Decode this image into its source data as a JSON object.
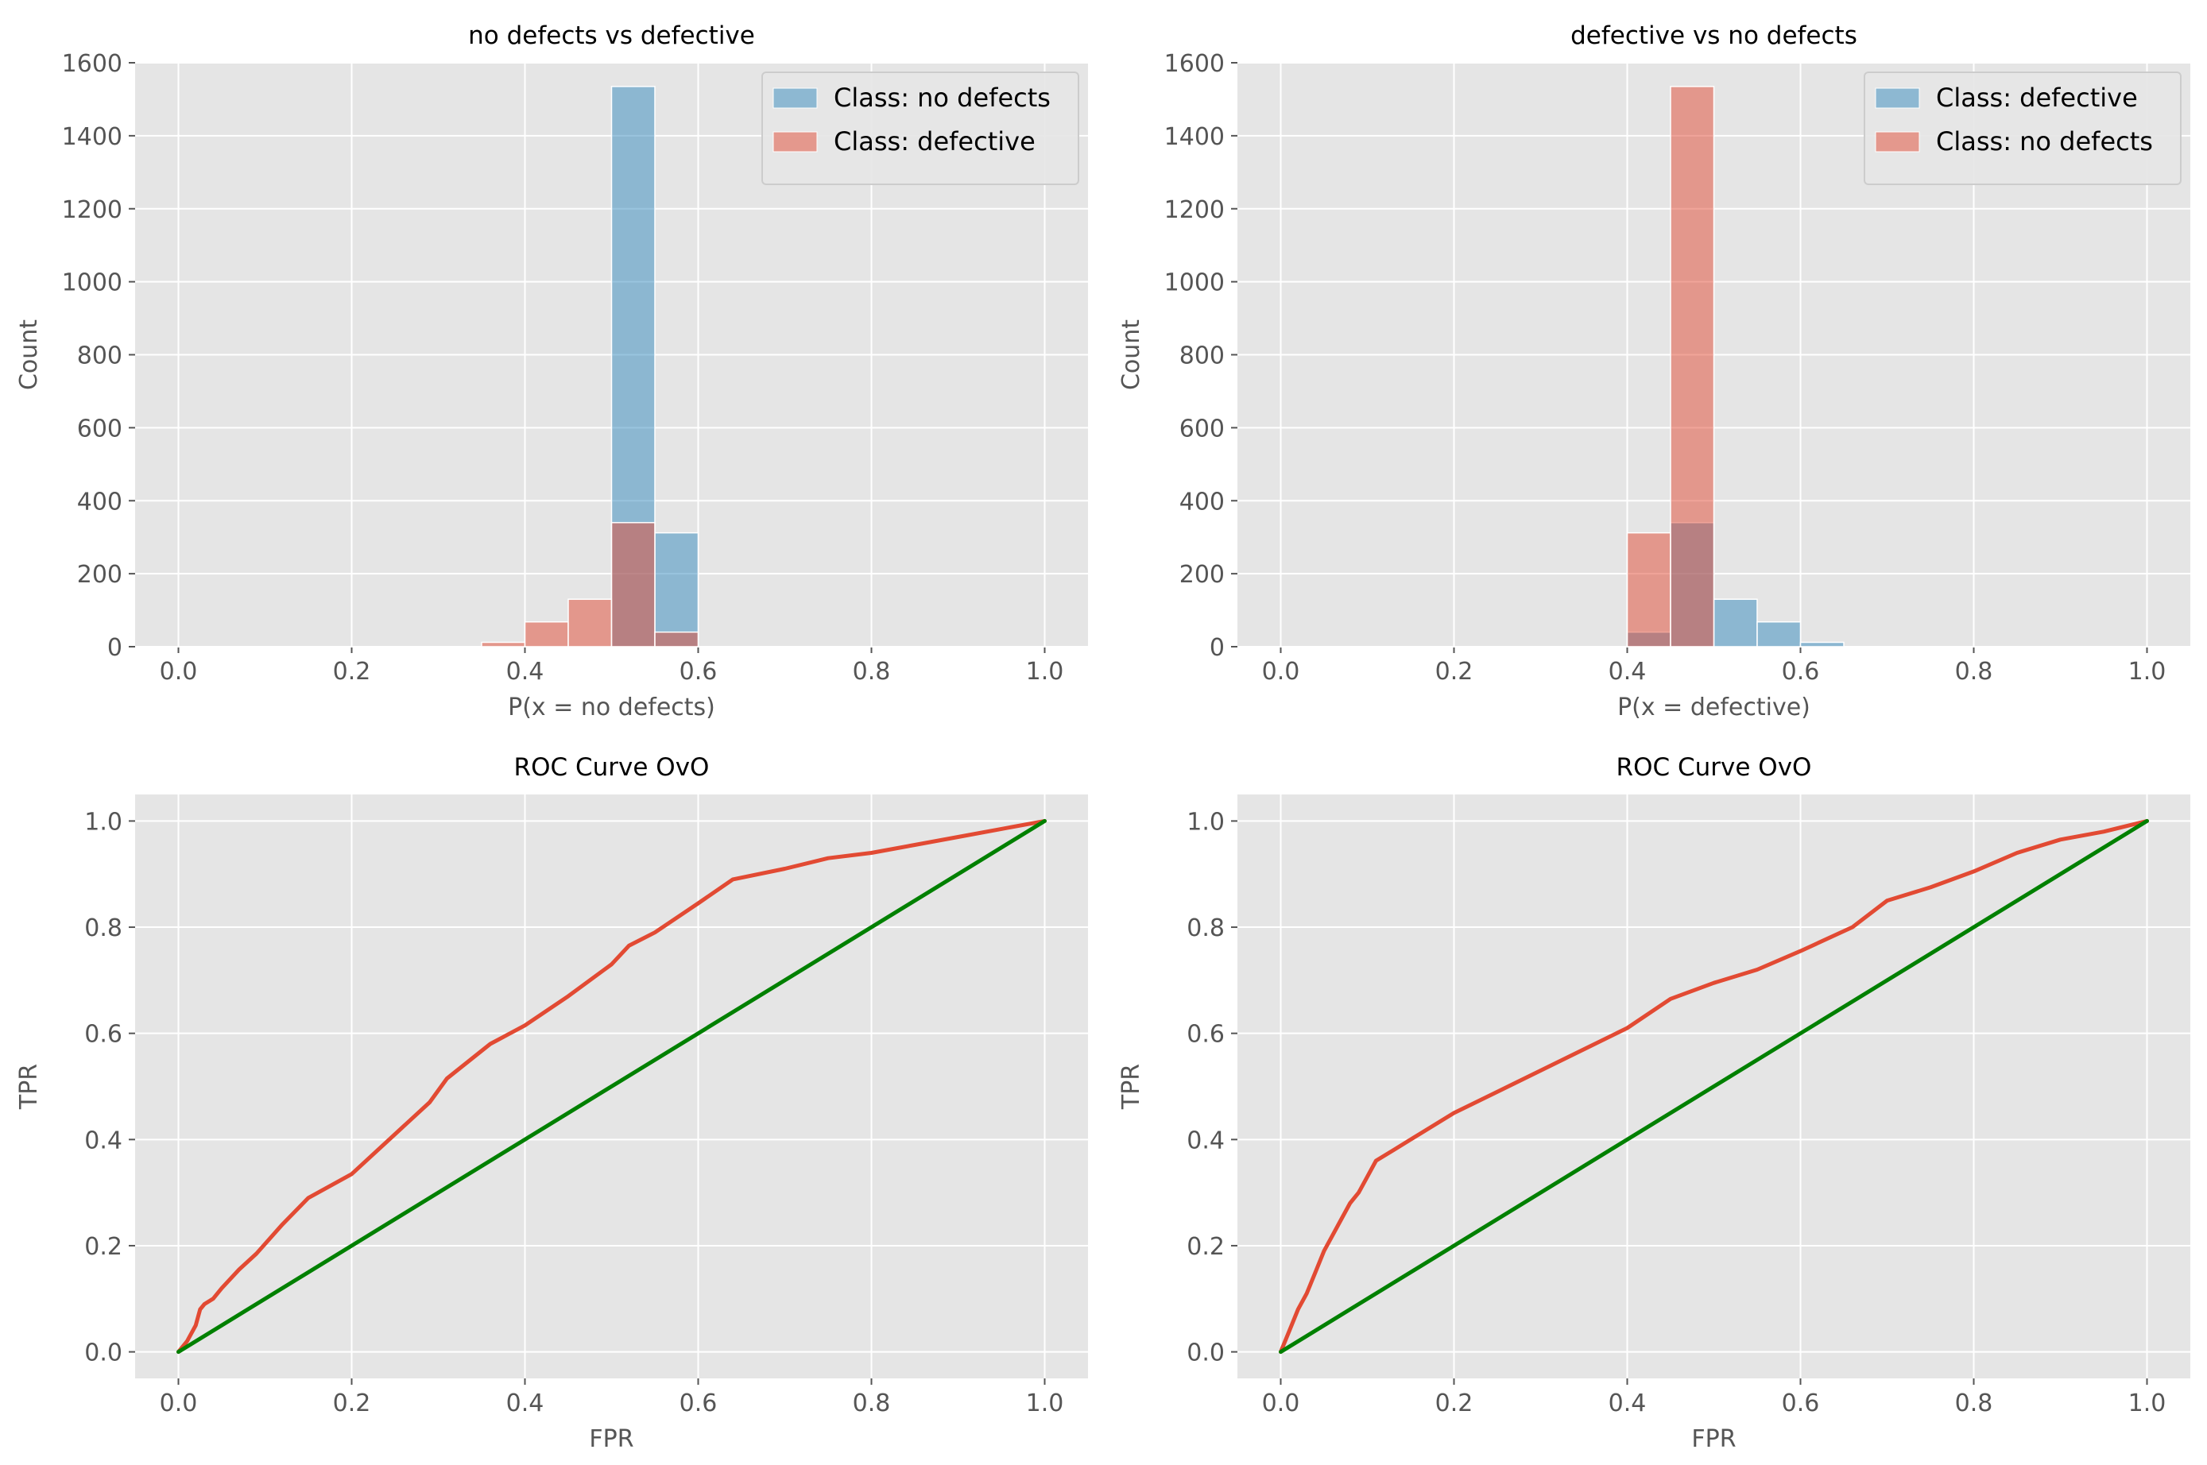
{
  "chart_data": [
    {
      "type": "bar",
      "subtype": "histogram",
      "title": "no defects vs defective",
      "xlabel": "P(x = no defects)",
      "ylabel": "Count",
      "xlim": [
        -0.05,
        1.05
      ],
      "ylim": [
        0,
        1600
      ],
      "xticks": [
        0.0,
        0.2,
        0.4,
        0.6,
        0.8,
        1.0
      ],
      "xtick_labels": [
        "0.0",
        "0.2",
        "0.4",
        "0.6",
        "0.8",
        "1.0"
      ],
      "yticks": [
        0,
        200,
        400,
        600,
        800,
        1000,
        1200,
        1400,
        1600
      ],
      "ytick_labels": [
        "0",
        "200",
        "400",
        "600",
        "800",
        "1000",
        "1200",
        "1400",
        "1600"
      ],
      "grid": true,
      "legend": "top-right",
      "series": [
        {
          "name": "Class: no defects",
          "color": "#348abd",
          "bins": [
            {
              "start": 0.5,
              "end": 0.55,
              "count": 1535
            },
            {
              "start": 0.55,
              "end": 0.6,
              "count": 312
            }
          ]
        },
        {
          "name": "Class: defective",
          "color": "#e24a33",
          "bins": [
            {
              "start": 0.35,
              "end": 0.4,
              "count": 12
            },
            {
              "start": 0.4,
              "end": 0.45,
              "count": 68
            },
            {
              "start": 0.45,
              "end": 0.5,
              "count": 130
            },
            {
              "start": 0.5,
              "end": 0.55,
              "count": 340
            },
            {
              "start": 0.55,
              "end": 0.6,
              "count": 40
            }
          ]
        }
      ]
    },
    {
      "type": "bar",
      "subtype": "histogram",
      "title": "defective vs no defects",
      "xlabel": "P(x = defective)",
      "ylabel": "Count",
      "xlim": [
        -0.05,
        1.05
      ],
      "ylim": [
        0,
        1600
      ],
      "xticks": [
        0.0,
        0.2,
        0.4,
        0.6,
        0.8,
        1.0
      ],
      "xtick_labels": [
        "0.0",
        "0.2",
        "0.4",
        "0.6",
        "0.8",
        "1.0"
      ],
      "yticks": [
        0,
        200,
        400,
        600,
        800,
        1000,
        1200,
        1400,
        1600
      ],
      "ytick_labels": [
        "0",
        "200",
        "400",
        "600",
        "800",
        "1000",
        "1200",
        "1400",
        "1600"
      ],
      "grid": true,
      "legend": "top-right",
      "series": [
        {
          "name": "Class: defective",
          "color": "#348abd",
          "bins": [
            {
              "start": 0.4,
              "end": 0.45,
              "count": 40
            },
            {
              "start": 0.45,
              "end": 0.5,
              "count": 340
            },
            {
              "start": 0.5,
              "end": 0.55,
              "count": 130
            },
            {
              "start": 0.55,
              "end": 0.6,
              "count": 68
            },
            {
              "start": 0.6,
              "end": 0.65,
              "count": 12
            }
          ]
        },
        {
          "name": "Class: no defects",
          "color": "#e24a33",
          "bins": [
            {
              "start": 0.4,
              "end": 0.45,
              "count": 312
            },
            {
              "start": 0.45,
              "end": 0.5,
              "count": 1535
            }
          ]
        }
      ]
    },
    {
      "type": "line",
      "title": "ROC Curve OvO",
      "xlabel": "FPR",
      "ylabel": "TPR",
      "xlim": [
        -0.05,
        1.05
      ],
      "ylim": [
        -0.05,
        1.05
      ],
      "xticks": [
        0.0,
        0.2,
        0.4,
        0.6,
        0.8,
        1.0
      ],
      "xtick_labels": [
        "0.0",
        "0.2",
        "0.4",
        "0.6",
        "0.8",
        "1.0"
      ],
      "yticks": [
        0.0,
        0.2,
        0.4,
        0.6,
        0.8,
        1.0
      ],
      "ytick_labels": [
        "0.0",
        "0.2",
        "0.4",
        "0.6",
        "0.8",
        "1.0"
      ],
      "grid": true,
      "series": [
        {
          "color": "#e24a33",
          "x": [
            0.0,
            0.01,
            0.02,
            0.025,
            0.03,
            0.04,
            0.05,
            0.07,
            0.09,
            0.12,
            0.15,
            0.2,
            0.25,
            0.29,
            0.31,
            0.36,
            0.4,
            0.45,
            0.5,
            0.52,
            0.55,
            0.6,
            0.64,
            0.7,
            0.75,
            0.8,
            0.85,
            0.9,
            0.95,
            1.0
          ],
          "y": [
            0.0,
            0.02,
            0.05,
            0.08,
            0.09,
            0.1,
            0.12,
            0.155,
            0.185,
            0.24,
            0.29,
            0.335,
            0.41,
            0.47,
            0.515,
            0.58,
            0.615,
            0.67,
            0.73,
            0.765,
            0.79,
            0.845,
            0.89,
            0.91,
            0.93,
            0.94,
            0.955,
            0.97,
            0.985,
            1.0
          ]
        },
        {
          "color": "#008000",
          "x": [
            0.0,
            1.0
          ],
          "y": [
            0.0,
            1.0
          ]
        }
      ]
    },
    {
      "type": "line",
      "title": "ROC Curve OvO",
      "xlabel": "FPR",
      "ylabel": "TPR",
      "xlim": [
        -0.05,
        1.05
      ],
      "ylim": [
        -0.05,
        1.05
      ],
      "xticks": [
        0.0,
        0.2,
        0.4,
        0.6,
        0.8,
        1.0
      ],
      "xtick_labels": [
        "0.0",
        "0.2",
        "0.4",
        "0.6",
        "0.8",
        "1.0"
      ],
      "yticks": [
        0.0,
        0.2,
        0.4,
        0.6,
        0.8,
        1.0
      ],
      "ytick_labels": [
        "0.0",
        "0.2",
        "0.4",
        "0.6",
        "0.8",
        "1.0"
      ],
      "grid": true,
      "series": [
        {
          "color": "#e24a33",
          "x": [
            0.0,
            0.01,
            0.02,
            0.03,
            0.04,
            0.05,
            0.06,
            0.07,
            0.08,
            0.09,
            0.1,
            0.11,
            0.13,
            0.16,
            0.2,
            0.25,
            0.3,
            0.35,
            0.4,
            0.45,
            0.5,
            0.55,
            0.6,
            0.66,
            0.7,
            0.75,
            0.8,
            0.85,
            0.9,
            0.95,
            1.0
          ],
          "y": [
            0.0,
            0.04,
            0.08,
            0.11,
            0.15,
            0.19,
            0.22,
            0.25,
            0.28,
            0.3,
            0.33,
            0.36,
            0.38,
            0.41,
            0.45,
            0.49,
            0.53,
            0.57,
            0.61,
            0.665,
            0.695,
            0.72,
            0.755,
            0.8,
            0.85,
            0.875,
            0.905,
            0.94,
            0.965,
            0.98,
            1.0
          ]
        },
        {
          "color": "#008000",
          "x": [
            0.0,
            1.0
          ],
          "y": [
            0.0,
            1.0
          ]
        }
      ]
    }
  ]
}
